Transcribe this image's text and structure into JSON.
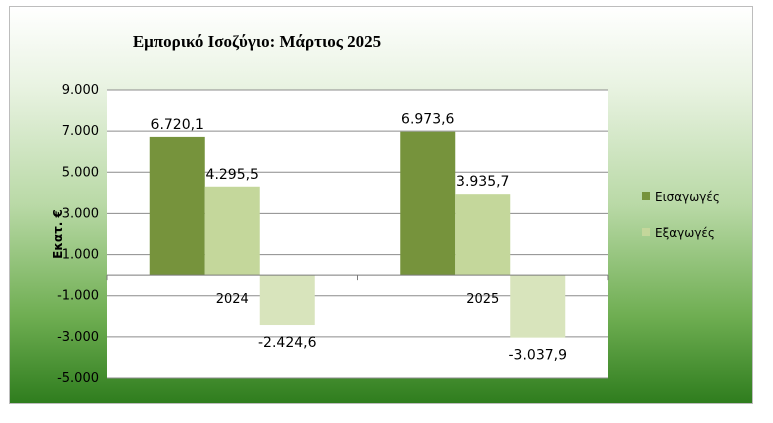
{
  "chart_data": {
    "type": "bar",
    "title": "Εμπορικό Ισοζύγιο: Μάρτιος 2025",
    "ylabel": "Εκατ. €",
    "xlabel": "",
    "ylim": [
      -5000,
      9000
    ],
    "yticks": [
      9000,
      7000,
      5000,
      3000,
      1000,
      -1000,
      -3000,
      -5000
    ],
    "ytick_labels": [
      "9.000",
      "7.000",
      "5.000",
      "3.000",
      "1.000",
      "-1.000",
      "-3.000",
      "-5.000"
    ],
    "categories": [
      "2024",
      "2025"
    ],
    "series": [
      {
        "name": "Εισαγωγές",
        "values": [
          6720.1,
          6973.6
        ],
        "labels": [
          "6.720,1",
          "6.973,6"
        ],
        "color": "#76933c"
      },
      {
        "name": "Εξαγωγές",
        "values": [
          4295.5,
          3935.7
        ],
        "labels": [
          "4.295,5",
          "3.935,7"
        ],
        "color": "#c4d79b"
      },
      {
        "name": "",
        "values": [
          -2424.6,
          -3037.9
        ],
        "labels": [
          "-2.424,6",
          "-3.037,9"
        ],
        "color": "#d8e4bc"
      }
    ],
    "legend_position": "right",
    "grid": true
  }
}
